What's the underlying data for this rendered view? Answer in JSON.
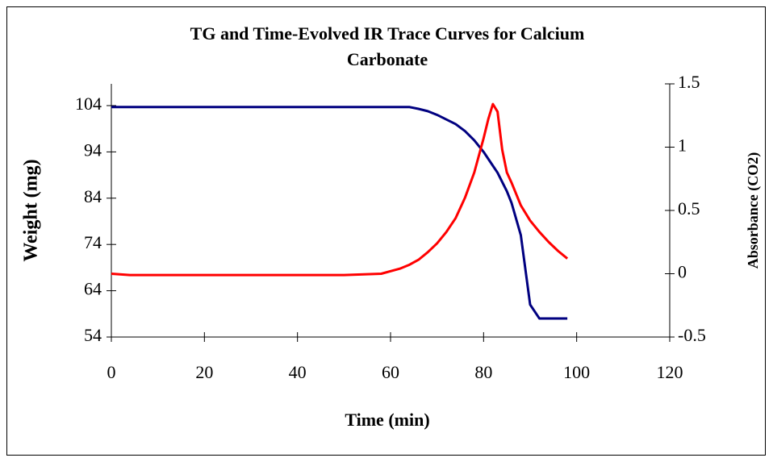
{
  "chart_data": {
    "type": "line",
    "title": "TG and Time-Evolved IR Trace Curves for Calcium Carbonate",
    "x_label": "Time (min)",
    "y_label": "Weight (mg)",
    "y2_label": "Absorbance (CO2)",
    "x": [
      0,
      4,
      10,
      20,
      30,
      40,
      50,
      58,
      62,
      64,
      66,
      68,
      70,
      72,
      74,
      76,
      78,
      80,
      81,
      82,
      83,
      84,
      85,
      86,
      88,
      90,
      92,
      94,
      96,
      98
    ],
    "series": [
      {
        "color": "#000080",
        "values": [
          103.7,
          103.7,
          103.7,
          103.7,
          103.7,
          103.7,
          103.7,
          103.7,
          103.7,
          103.7,
          103.3,
          102.8,
          102,
          101,
          100,
          98.5,
          96.5,
          94,
          92.5,
          91,
          89.5,
          87.5,
          85.5,
          83,
          76,
          61,
          58,
          58,
          58,
          58
        ]
      },
      {
        "color": "#ff0000",
        "axis": "y2",
        "values": [
          0,
          -0.01,
          -0.01,
          -0.01,
          -0.01,
          -0.01,
          -0.01,
          0,
          0.04,
          0.07,
          0.11,
          0.17,
          0.24,
          0.33,
          0.44,
          0.6,
          0.8,
          1.07,
          1.22,
          1.34,
          1.28,
          0.98,
          0.8,
          0.72,
          0.54,
          0.42,
          0.33,
          0.25,
          0.18,
          0.12
        ]
      }
    ],
    "xlim": [
      0,
      120
    ],
    "xticks": [
      0,
      20,
      40,
      60,
      80,
      100,
      120
    ],
    "ylim": [
      54,
      108.7
    ],
    "yticks": [
      54,
      64,
      74,
      84,
      94,
      104
    ],
    "y2lim": [
      -0.5,
      1.5
    ],
    "y2ticks": [
      -0.5,
      0,
      0.5,
      1,
      1.5
    ]
  }
}
